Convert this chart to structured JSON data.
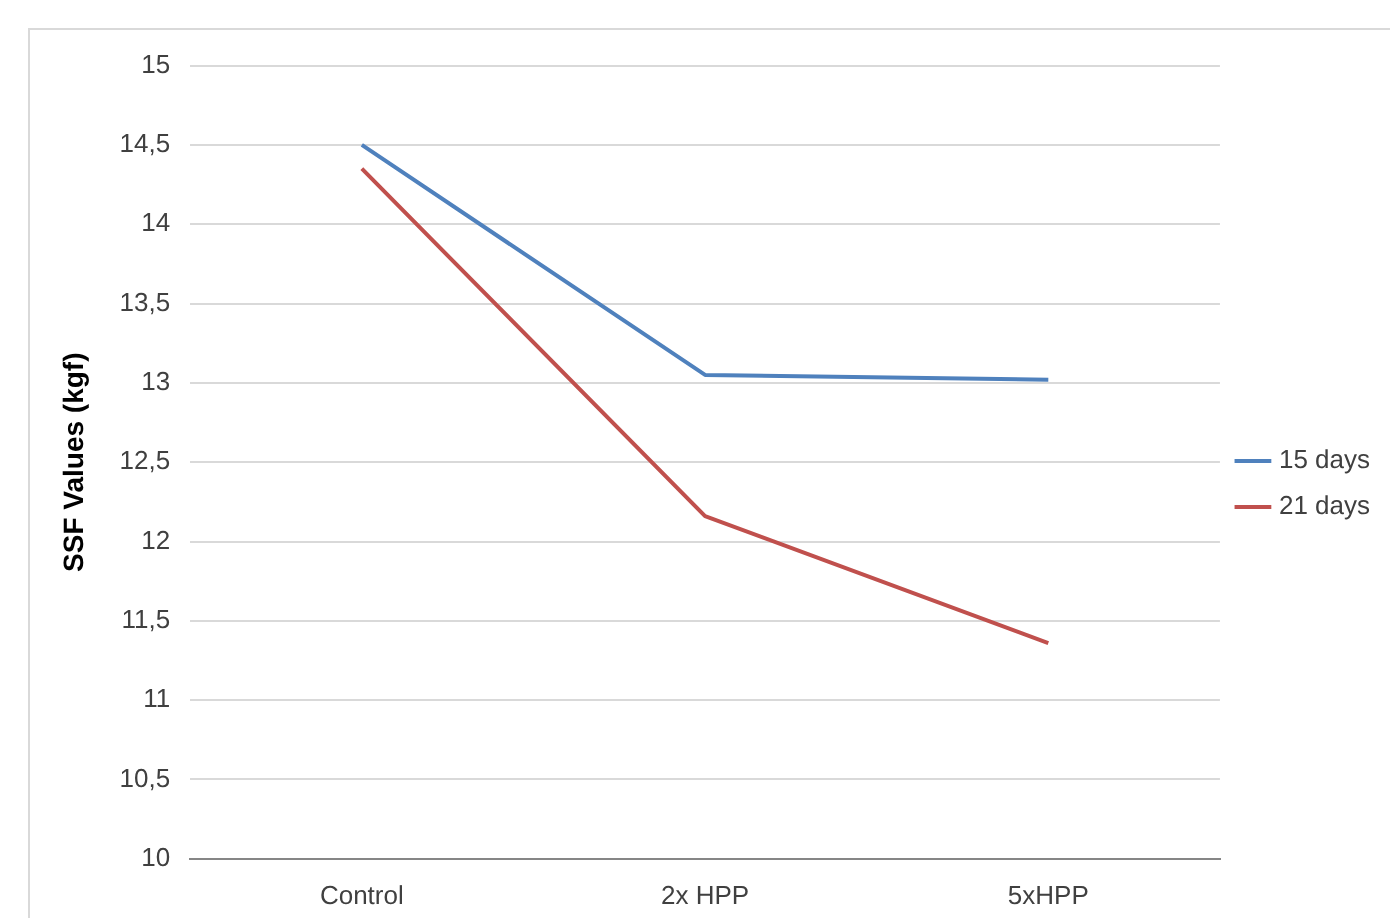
{
  "chart_data": {
    "type": "line",
    "ylabel": "SSF Values (kgf)",
    "categories": [
      "Control",
      "2x HPP",
      "5xHPP"
    ],
    "series": [
      {
        "name": "15 days",
        "color": "#4f81bd",
        "values": [
          14.5,
          13.05,
          13.02
        ]
      },
      {
        "name": "21 days",
        "color": "#c0504d",
        "values": [
          14.35,
          12.16,
          11.36
        ]
      }
    ],
    "ylim": [
      10,
      15
    ],
    "yticks": [
      10,
      {
        "value": 10.5,
        "label": "10,5"
      },
      11,
      {
        "value": 11.5,
        "label": "11,5"
      },
      12,
      {
        "value": 12.5,
        "label": "12,5"
      },
      13,
      {
        "value": 13.5,
        "label": "13,5"
      },
      14,
      {
        "value": 14.5,
        "label": "14,5"
      },
      15
    ],
    "grid": "y",
    "legend": "right",
    "marker": "none",
    "line_style": "solid"
  }
}
